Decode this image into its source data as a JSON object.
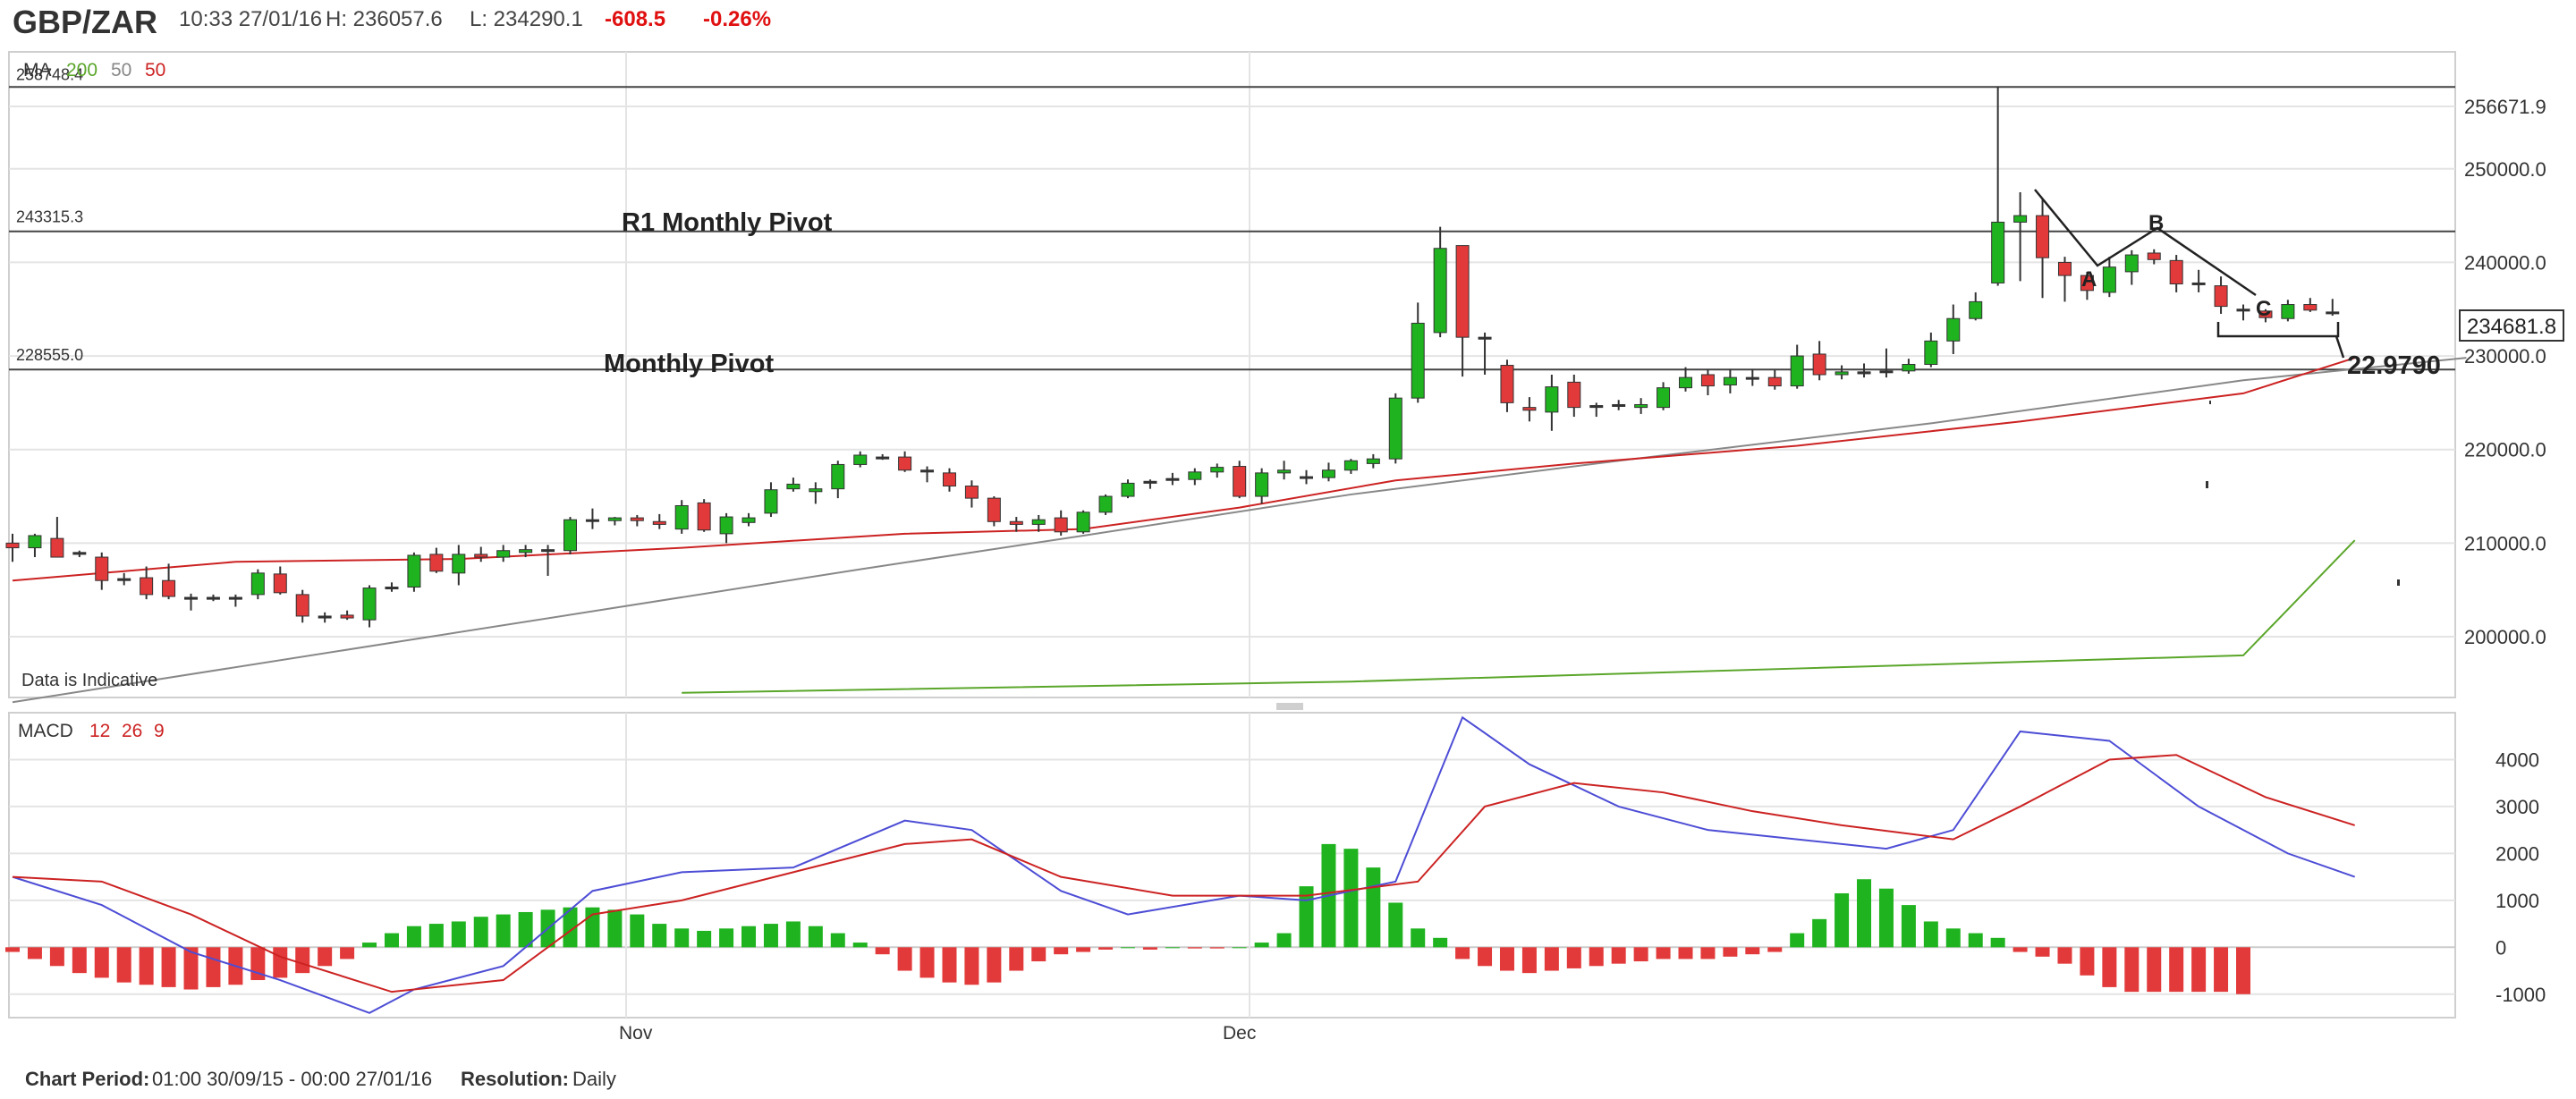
{
  "header": {
    "symbol": "GBP/ZAR",
    "timestamp": "10:33 27/01/16",
    "high": "H: 236057.6",
    "low": "L: 234290.1",
    "change": "-608.5",
    "change_pct": "-0.26%"
  },
  "colors": {
    "up": "#1fb31f",
    "down": "#e23a3a",
    "ma200": "#5aa62a",
    "ma50": "#cc2222",
    "macd_line": "#4d4dd6",
    "signal_line": "#cc2222",
    "grid": "#e4e4e4"
  },
  "chart_data": [
    {
      "type": "candlestick",
      "legend": {
        "label": "MA",
        "items": [
          {
            "text": "200",
            "color": "#5aa62a"
          },
          {
            "text": "50",
            "color": "#888888"
          },
          {
            "text": "50",
            "color": "#cc2222"
          }
        ]
      },
      "ylim": [
        193500,
        262500
      ],
      "y_ticks": [
        "200000.0",
        "210000.0",
        "220000.0",
        "230000.0",
        "240000.0",
        "250000.0",
        "256671.9"
      ],
      "x_ticks": [
        "Nov",
        "Dec"
      ],
      "last_price": "234681.8",
      "corner_note": "Data is Indicative",
      "level_lines": [
        {
          "label": "258748.4",
          "value": 258748.4
        },
        {
          "label": "243315.3",
          "value": 243315.3
        },
        {
          "label": "228555.0",
          "value": 228555.0
        }
      ],
      "annotations": {
        "r1_monthly_pivot": "R1 Monthly Pivot",
        "monthly_pivot": "Monthly Pivot",
        "wave_a": "A",
        "wave_b": "B",
        "wave_c": "C",
        "target": "22.9790"
      },
      "candles": [
        [
          210000,
          211000,
          208000,
          209500
        ],
        [
          209500,
          211000,
          208500,
          210800
        ],
        [
          210500,
          212800,
          208800,
          208500
        ],
        [
          208800,
          209200,
          208500,
          209000
        ],
        [
          208500,
          209000,
          205000,
          206000
        ],
        [
          206000,
          206800,
          205500,
          206200
        ],
        [
          206300,
          207500,
          204000,
          204500
        ],
        [
          206000,
          207800,
          204000,
          204300
        ],
        [
          204200,
          204600,
          202800,
          204000
        ],
        [
          204000,
          204500,
          203800,
          204200
        ],
        [
          204000,
          204500,
          203200,
          204200
        ],
        [
          204500,
          207200,
          204000,
          206800
        ],
        [
          206700,
          207500,
          204500,
          204700
        ],
        [
          204500,
          205000,
          201500,
          202200
        ],
        [
          202200,
          202600,
          201500,
          202000
        ],
        [
          202300,
          202800,
          201800,
          202000
        ],
        [
          201800,
          205500,
          201000,
          205200
        ],
        [
          205200,
          205800,
          204800,
          205300
        ],
        [
          205300,
          209000,
          204800,
          208700
        ],
        [
          208800,
          209500,
          206800,
          207000
        ],
        [
          206800,
          209800,
          205500,
          208800
        ],
        [
          208800,
          209600,
          208000,
          208500
        ],
        [
          208500,
          209800,
          208000,
          209200
        ],
        [
          209000,
          209800,
          208500,
          209300
        ],
        [
          209200,
          209800,
          206500,
          209300
        ],
        [
          209200,
          212800,
          208800,
          212500
        ],
        [
          212500,
          213700,
          211500,
          212400
        ],
        [
          212400,
          212800,
          211900,
          212700
        ],
        [
          212700,
          213000,
          211800,
          212400
        ],
        [
          212300,
          213100,
          211500,
          212000
        ],
        [
          211500,
          214600,
          211000,
          214000
        ],
        [
          214300,
          214700,
          211200,
          211400
        ],
        [
          211000,
          213200,
          210000,
          212800
        ],
        [
          212200,
          213200,
          211800,
          212700
        ],
        [
          213200,
          216500,
          212800,
          215700
        ],
        [
          215800,
          217000,
          215500,
          216300
        ],
        [
          215500,
          216500,
          214200,
          215800
        ],
        [
          215800,
          218800,
          214800,
          218400
        ],
        [
          218400,
          219800,
          218100,
          219400
        ],
        [
          219200,
          219500,
          218900,
          219000
        ],
        [
          219200,
          219800,
          217600,
          217800
        ],
        [
          217800,
          218200,
          216500,
          217600
        ],
        [
          217500,
          218000,
          215500,
          216100
        ],
        [
          216100,
          216700,
          213800,
          214800
        ],
        [
          214800,
          215000,
          211800,
          212300
        ],
        [
          212300,
          212800,
          211200,
          212000
        ],
        [
          212000,
          213000,
          211200,
          212500
        ],
        [
          212700,
          213500,
          210800,
          211200
        ],
        [
          211200,
          213500,
          211000,
          213300
        ],
        [
          213300,
          215200,
          213000,
          215000
        ],
        [
          215000,
          216800,
          214800,
          216400
        ],
        [
          216400,
          216800,
          215800,
          216600
        ],
        [
          216700,
          217500,
          216200,
          216900
        ],
        [
          216800,
          218000,
          216200,
          217600
        ],
        [
          217600,
          218500,
          217000,
          218100
        ],
        [
          218200,
          218800,
          214800,
          215000
        ],
        [
          215000,
          218000,
          214200,
          217500
        ],
        [
          217500,
          218800,
          216800,
          217800
        ],
        [
          217000,
          217800,
          216300,
          217100
        ],
        [
          217000,
          218600,
          216600,
          217800
        ],
        [
          217800,
          219000,
          217400,
          218800
        ],
        [
          218500,
          219500,
          218000,
          219000
        ],
        [
          219000,
          226000,
          218500,
          225500
        ],
        [
          225500,
          235700,
          225000,
          233500
        ],
        [
          232500,
          243800,
          232000,
          241500
        ],
        [
          241800,
          241800,
          227800,
          232000
        ],
        [
          231800,
          232500,
          228000,
          232000
        ],
        [
          229000,
          229600,
          224000,
          225000
        ],
        [
          224500,
          225600,
          223000,
          224200
        ],
        [
          224000,
          228000,
          222000,
          226700
        ],
        [
          227200,
          228000,
          223500,
          224500
        ],
        [
          224500,
          225000,
          223500,
          224700
        ],
        [
          224700,
          225300,
          224200,
          224800
        ],
        [
          224500,
          225500,
          223800,
          224800
        ],
        [
          224500,
          227200,
          224200,
          226600
        ],
        [
          226600,
          228800,
          226200,
          227700
        ],
        [
          228000,
          228600,
          225800,
          226800
        ],
        [
          226900,
          228600,
          226000,
          227700
        ],
        [
          227700,
          228600,
          226800,
          227600
        ],
        [
          227700,
          228500,
          226400,
          226800
        ],
        [
          226800,
          231200,
          226500,
          230000
        ],
        [
          230200,
          231600,
          227400,
          228000
        ],
        [
          228000,
          229000,
          227500,
          228300
        ],
        [
          228300,
          229200,
          227700,
          228100
        ],
        [
          228300,
          230800,
          227700,
          228400
        ],
        [
          228400,
          229700,
          228100,
          229100
        ],
        [
          229100,
          232500,
          228800,
          231600
        ],
        [
          231600,
          235500,
          230200,
          234000
        ],
        [
          234000,
          236800,
          233800,
          235800
        ],
        [
          237800,
          258800,
          237500,
          244300
        ],
        [
          244300,
          247500,
          238000,
          245000
        ],
        [
          245000,
          246800,
          236200,
          240500
        ],
        [
          240000,
          240600,
          235800,
          238600
        ],
        [
          238600,
          239000,
          236000,
          237000
        ],
        [
          236800,
          240600,
          236300,
          239500
        ],
        [
          239000,
          241300,
          237600,
          240800
        ],
        [
          241000,
          241400,
          239800,
          240300
        ],
        [
          240200,
          240800,
          236800,
          237700
        ],
        [
          237800,
          239200,
          236800,
          237800
        ],
        [
          237500,
          238500,
          234500,
          235300
        ],
        [
          235000,
          235500,
          233800,
          234800
        ],
        [
          234800,
          235000,
          233600,
          234100
        ],
        [
          234000,
          236000,
          233700,
          235500
        ],
        [
          235500,
          236200,
          234700,
          234900
        ],
        [
          234700,
          236100,
          234300,
          234700
        ]
      ],
      "series": [
        {
          "name": "200",
          "points": [
            [
              30,
              194000
            ],
            [
              60,
              195200
            ],
            [
              80,
              196600
            ],
            [
              100,
              198000
            ],
            [
              105,
              210300
            ]
          ]
        },
        {
          "name": "50",
          "color": "#888888",
          "points": [
            [
              0,
              193000
            ],
            [
              38,
              207200
            ],
            [
              48,
              210800
            ],
            [
              60,
              215200
            ],
            [
              72,
              218800
            ],
            [
              86,
              222800
            ],
            [
              100,
              227400
            ],
            [
              110,
              229800
            ]
          ]
        },
        {
          "name": "50",
          "color": "#cc2222",
          "points": [
            [
              0,
              206000
            ],
            [
              10,
              208000
            ],
            [
              20,
              208300
            ],
            [
              30,
              209500
            ],
            [
              40,
              211000
            ],
            [
              48,
              211500
            ],
            [
              55,
              213800
            ],
            [
              62,
              216700
            ],
            [
              70,
              218500
            ],
            [
              80,
              220400
            ],
            [
              90,
              223000
            ],
            [
              100,
              226000
            ],
            [
              105,
              229800
            ]
          ]
        }
      ]
    },
    {
      "type": "line",
      "legend": {
        "label": "MACD",
        "items": [
          {
            "text": "12",
            "color": "#cc2222"
          },
          {
            "text": "26",
            "color": "#cc2222"
          },
          {
            "text": "9",
            "color": "#cc2222"
          }
        ]
      },
      "ylim": [
        -1500,
        5000
      ],
      "y_ticks": [
        "-1000",
        "0",
        "1000",
        "2000",
        "3000",
        "4000"
      ],
      "x_ticks": [
        "Nov",
        "Dec"
      ],
      "series": [
        {
          "name": "MACD",
          "points": [
            [
              0,
              1500
            ],
            [
              4,
              900
            ],
            [
              8,
              -100
            ],
            [
              12,
              -700
            ],
            [
              16,
              -1400
            ],
            [
              18,
              -900
            ],
            [
              22,
              -400
            ],
            [
              26,
              1200
            ],
            [
              30,
              1600
            ],
            [
              35,
              1700
            ],
            [
              40,
              2700
            ],
            [
              43,
              2500
            ],
            [
              47,
              1200
            ],
            [
              50,
              700
            ],
            [
              55,
              1100
            ],
            [
              58,
              1000
            ],
            [
              62,
              1400
            ],
            [
              65,
              4900
            ],
            [
              68,
              3900
            ],
            [
              72,
              3000
            ],
            [
              76,
              2500
            ],
            [
              80,
              2300
            ],
            [
              84,
              2100
            ],
            [
              87,
              2500
            ],
            [
              90,
              4600
            ],
            [
              94,
              4400
            ],
            [
              98,
              3000
            ],
            [
              102,
              2000
            ],
            [
              105,
              1500
            ]
          ]
        },
        {
          "name": "Signal",
          "points": [
            [
              0,
              1500
            ],
            [
              4,
              1400
            ],
            [
              8,
              700
            ],
            [
              12,
              -200
            ],
            [
              17,
              -950
            ],
            [
              22,
              -700
            ],
            [
              26,
              700
            ],
            [
              30,
              1000
            ],
            [
              35,
              1600
            ],
            [
              40,
              2200
            ],
            [
              43,
              2300
            ],
            [
              47,
              1500
            ],
            [
              52,
              1100
            ],
            [
              58,
              1100
            ],
            [
              63,
              1400
            ],
            [
              66,
              3000
            ],
            [
              70,
              3500
            ],
            [
              74,
              3300
            ],
            [
              78,
              2900
            ],
            [
              82,
              2600
            ],
            [
              87,
              2300
            ],
            [
              90,
              3000
            ],
            [
              94,
              4000
            ],
            [
              97,
              4100
            ],
            [
              101,
              3200
            ],
            [
              105,
              2600
            ]
          ]
        }
      ],
      "histogram": [
        -100,
        -250,
        -400,
        -550,
        -650,
        -750,
        -800,
        -850,
        -900,
        -850,
        -800,
        -700,
        -650,
        -550,
        -400,
        -250,
        100,
        300,
        450,
        500,
        550,
        650,
        700,
        750,
        800,
        850,
        850,
        800,
        700,
        500,
        400,
        350,
        400,
        450,
        500,
        550,
        450,
        300,
        100,
        -150,
        -500,
        -650,
        -750,
        -800,
        -750,
        -500,
        -300,
        -150,
        -100,
        -50,
        0,
        -50,
        0,
        -25,
        -25,
        0,
        100,
        300,
        1300,
        2200,
        2100,
        1700,
        950,
        400,
        200,
        -250,
        -400,
        -500,
        -550,
        -500,
        -450,
        -400,
        -350,
        -300,
        -250,
        -250,
        -250,
        -200,
        -150,
        -100,
        300,
        600,
        1150,
        1450,
        1250,
        900,
        550,
        400,
        300,
        200,
        -100,
        -200,
        -350,
        -600,
        -850,
        -950,
        -950,
        -950,
        -950,
        -950,
        -1000
      ]
    }
  ],
  "footer": {
    "period_label": "Chart Period:",
    "period_value": "01:00 30/09/15 - 00:00 27/01/16",
    "resolution_label": "Resolution:",
    "resolution_value": "Daily"
  }
}
